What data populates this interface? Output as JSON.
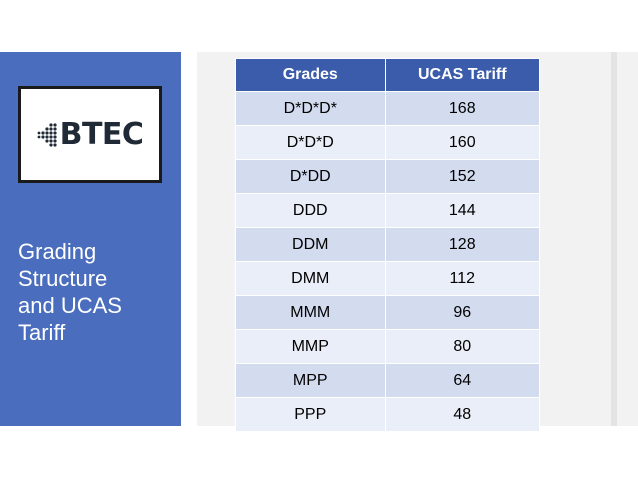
{
  "slide": {
    "title_lines": [
      "Grading",
      "Structure",
      "and UCAS",
      "Tariff"
    ],
    "logo_text": "BTEC",
    "logo_icon": "dot-matrix-icon",
    "colors": {
      "panel": "#4a6ebd",
      "table_header": "#3b5cab",
      "row_odd": "#d3dbef",
      "row_even": "#eaeef8"
    }
  },
  "table": {
    "headers": [
      "Grades",
      "UCAS Tariff"
    ],
    "rows": [
      [
        "D*D*D*",
        "168"
      ],
      [
        "D*D*D",
        "160"
      ],
      [
        "D*DD",
        "152"
      ],
      [
        "DDD",
        "144"
      ],
      [
        "DDM",
        "128"
      ],
      [
        "DMM",
        "112"
      ],
      [
        "MMM",
        "96"
      ],
      [
        "MMP",
        "80"
      ],
      [
        "MPP",
        "64"
      ],
      [
        "PPP",
        "48"
      ]
    ]
  }
}
